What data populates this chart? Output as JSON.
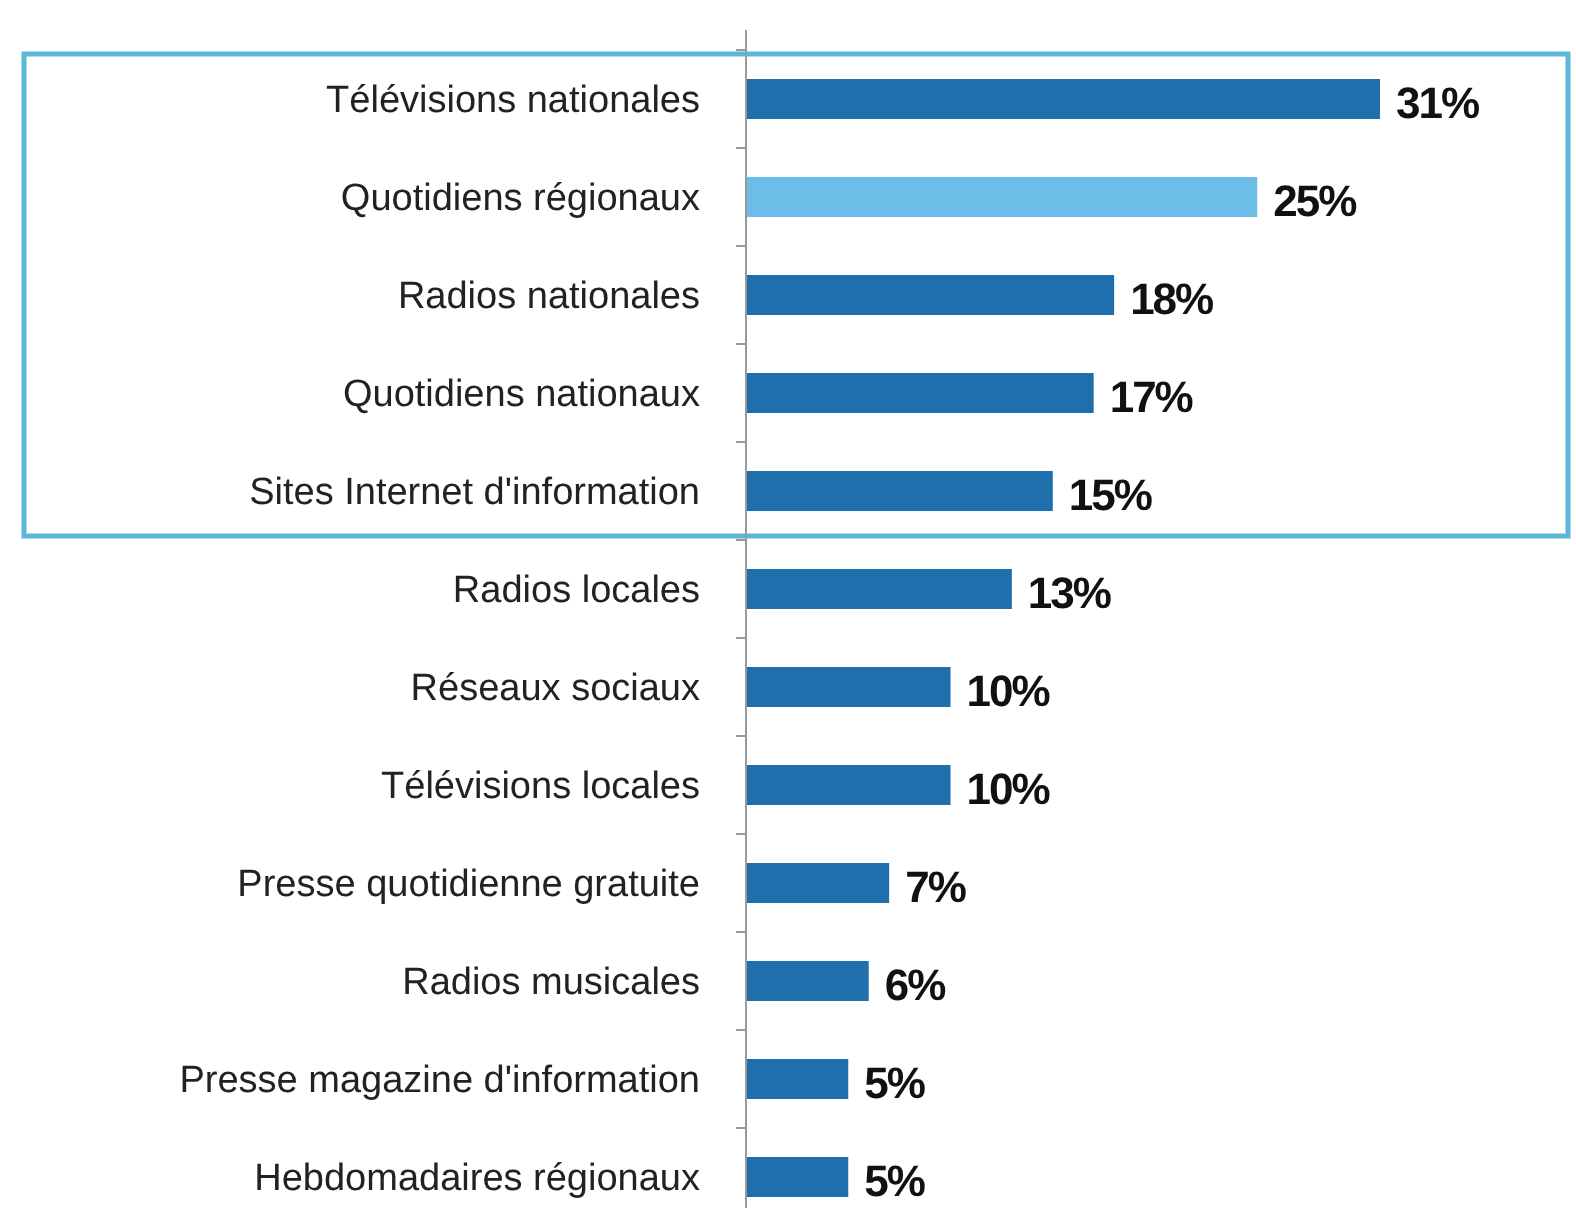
{
  "chart_data": {
    "type": "bar",
    "orientation": "horizontal",
    "categories": [
      "Télévisions nationales",
      "Quotidiens régionaux",
      "Radios nationales",
      "Quotidiens nationaux",
      "Sites Internet d'information",
      "Radios locales",
      "Réseaux sociaux",
      "Télévisions locales",
      "Presse quotidienne gratuite",
      "Radios musicales",
      "Presse magazine d'information",
      "Hebdomadaires régionaux"
    ],
    "values": [
      31,
      25,
      18,
      17,
      15,
      13,
      10,
      10,
      7,
      6,
      5,
      5
    ],
    "value_labels": [
      "31%",
      "25%",
      "18%",
      "17%",
      "15%",
      "13%",
      "10%",
      "10%",
      "7%",
      "6%",
      "5%",
      "5%"
    ],
    "colors": [
      "#1f6fad",
      "#6cbde8",
      "#1f6fad",
      "#1f6fad",
      "#1f6fad",
      "#1f6fad",
      "#1f6fad",
      "#1f6fad",
      "#1f6fad",
      "#1f6fad",
      "#1f6fad",
      "#1f6fad"
    ]
  }
}
